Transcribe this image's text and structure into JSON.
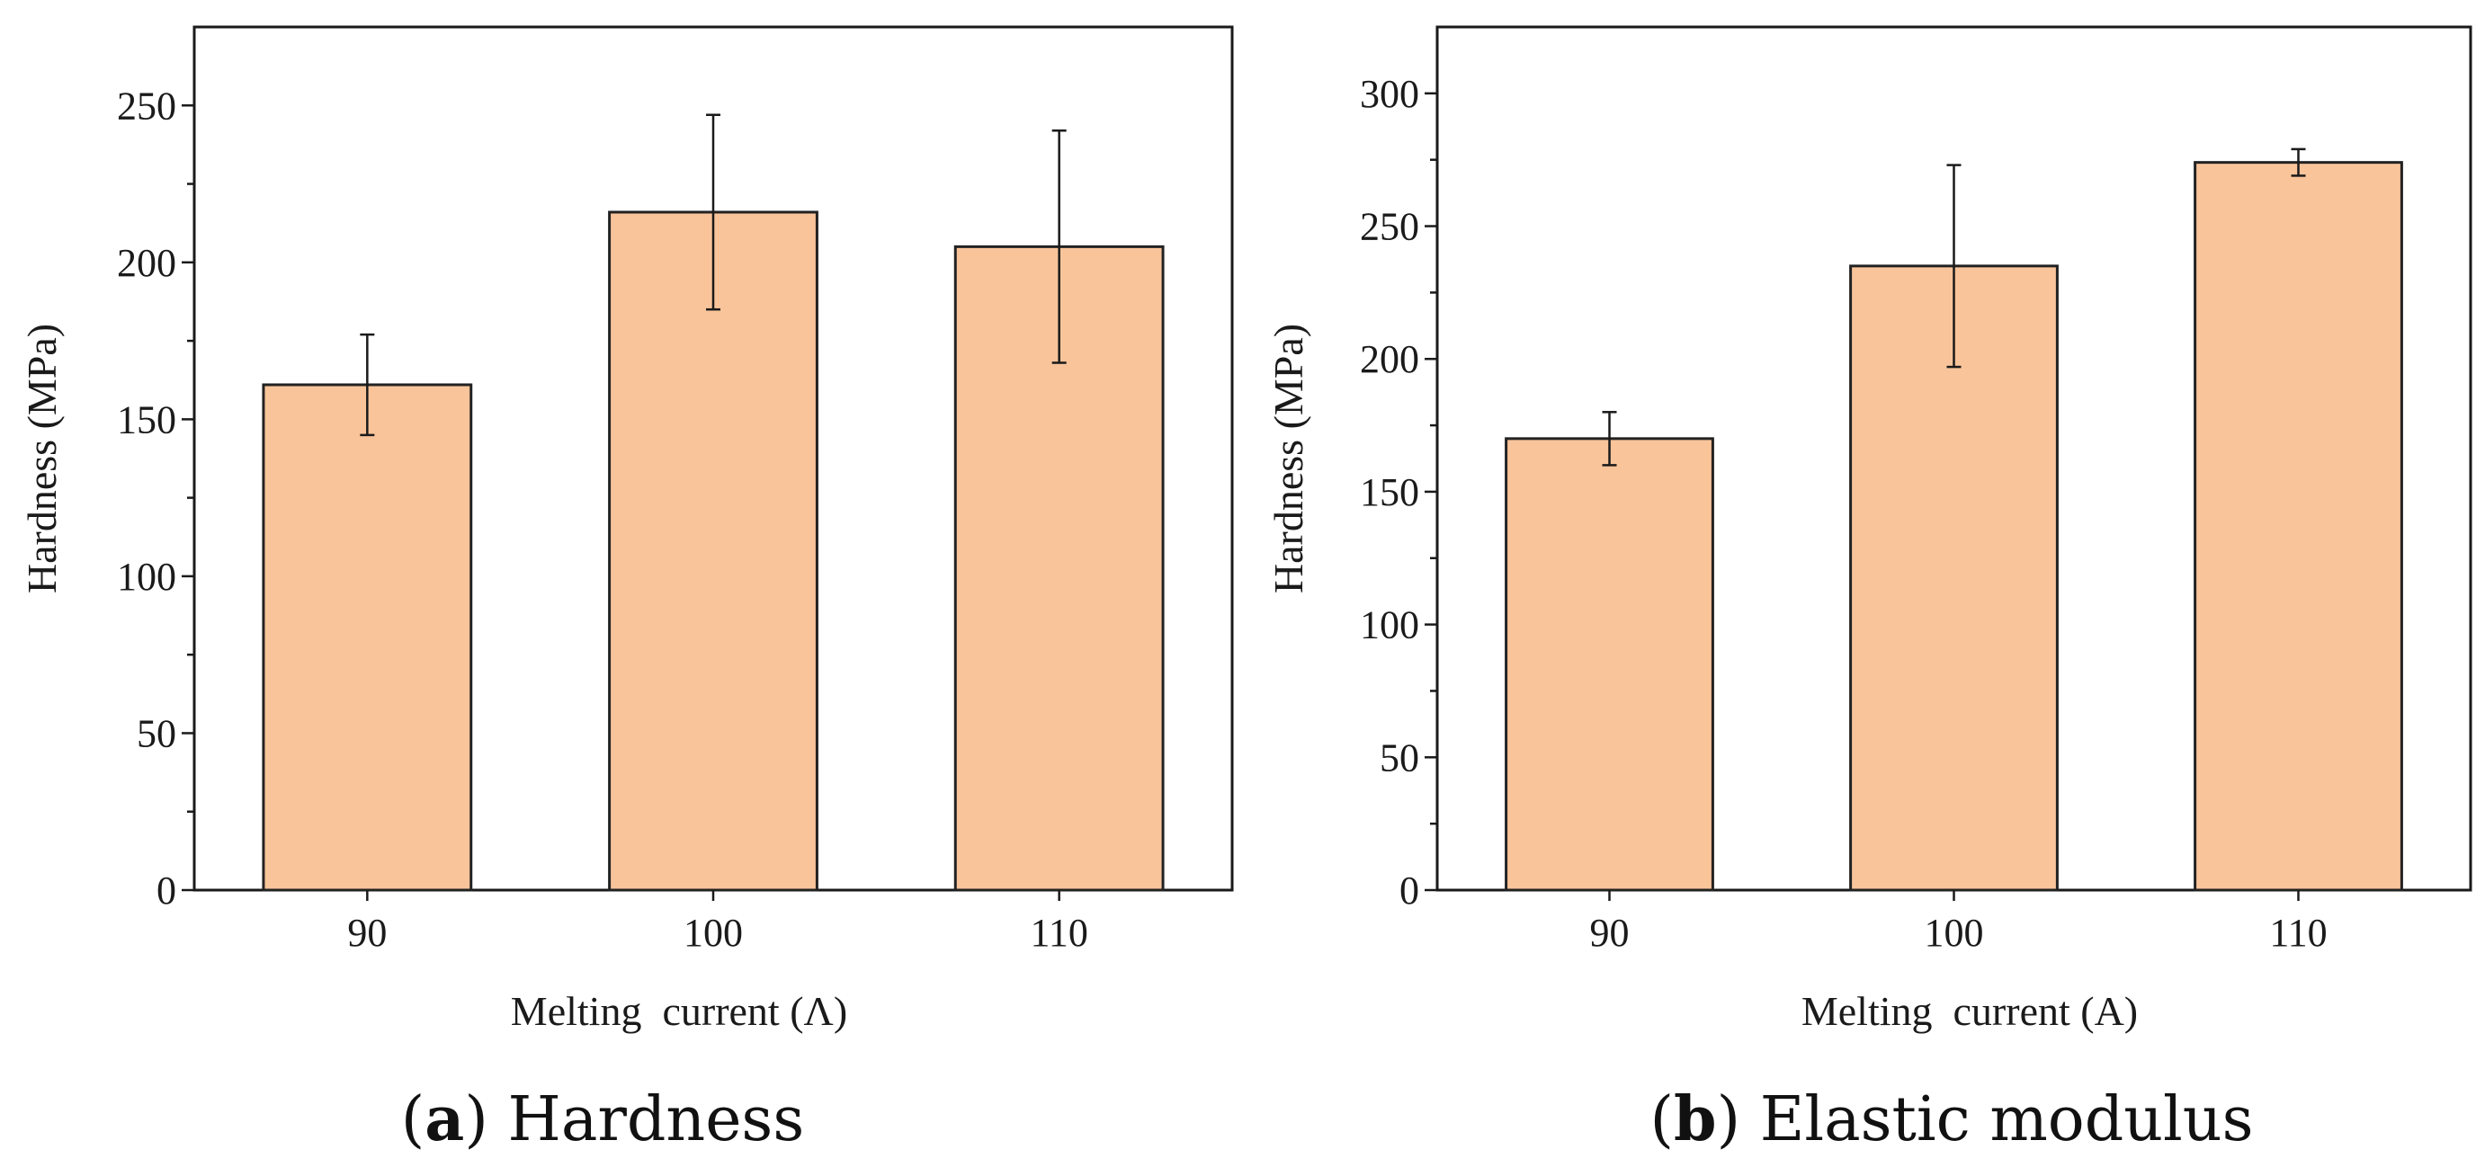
{
  "chart_data": [
    {
      "type": "bar",
      "title": "",
      "xlabel": "Melting  current (Λ)",
      "ylabel": "Hardness (MPa)",
      "categories": [
        "90",
        "100",
        "110"
      ],
      "values": [
        161,
        216,
        205
      ],
      "errors": [
        16,
        31,
        37
      ],
      "ylim": [
        0,
        275
      ],
      "yticks": [
        0,
        50,
        100,
        150,
        200,
        250
      ],
      "bar_color": "#f9c49a",
      "caption_letter": "a",
      "caption_text": "Hardness"
    },
    {
      "type": "bar",
      "title": "",
      "xlabel": "Melting  current (A)",
      "ylabel": "Hardness (MPa)",
      "categories": [
        "90",
        "100",
        "110"
      ],
      "values": [
        170,
        235,
        274
      ],
      "errors": [
        10,
        38,
        5
      ],
      "ylim": [
        0,
        325
      ],
      "yticks": [
        0,
        50,
        100,
        150,
        200,
        250,
        300
      ],
      "bar_color": "#f9c49a",
      "caption_letter": "b",
      "caption_text": "Elastic modulus"
    }
  ]
}
